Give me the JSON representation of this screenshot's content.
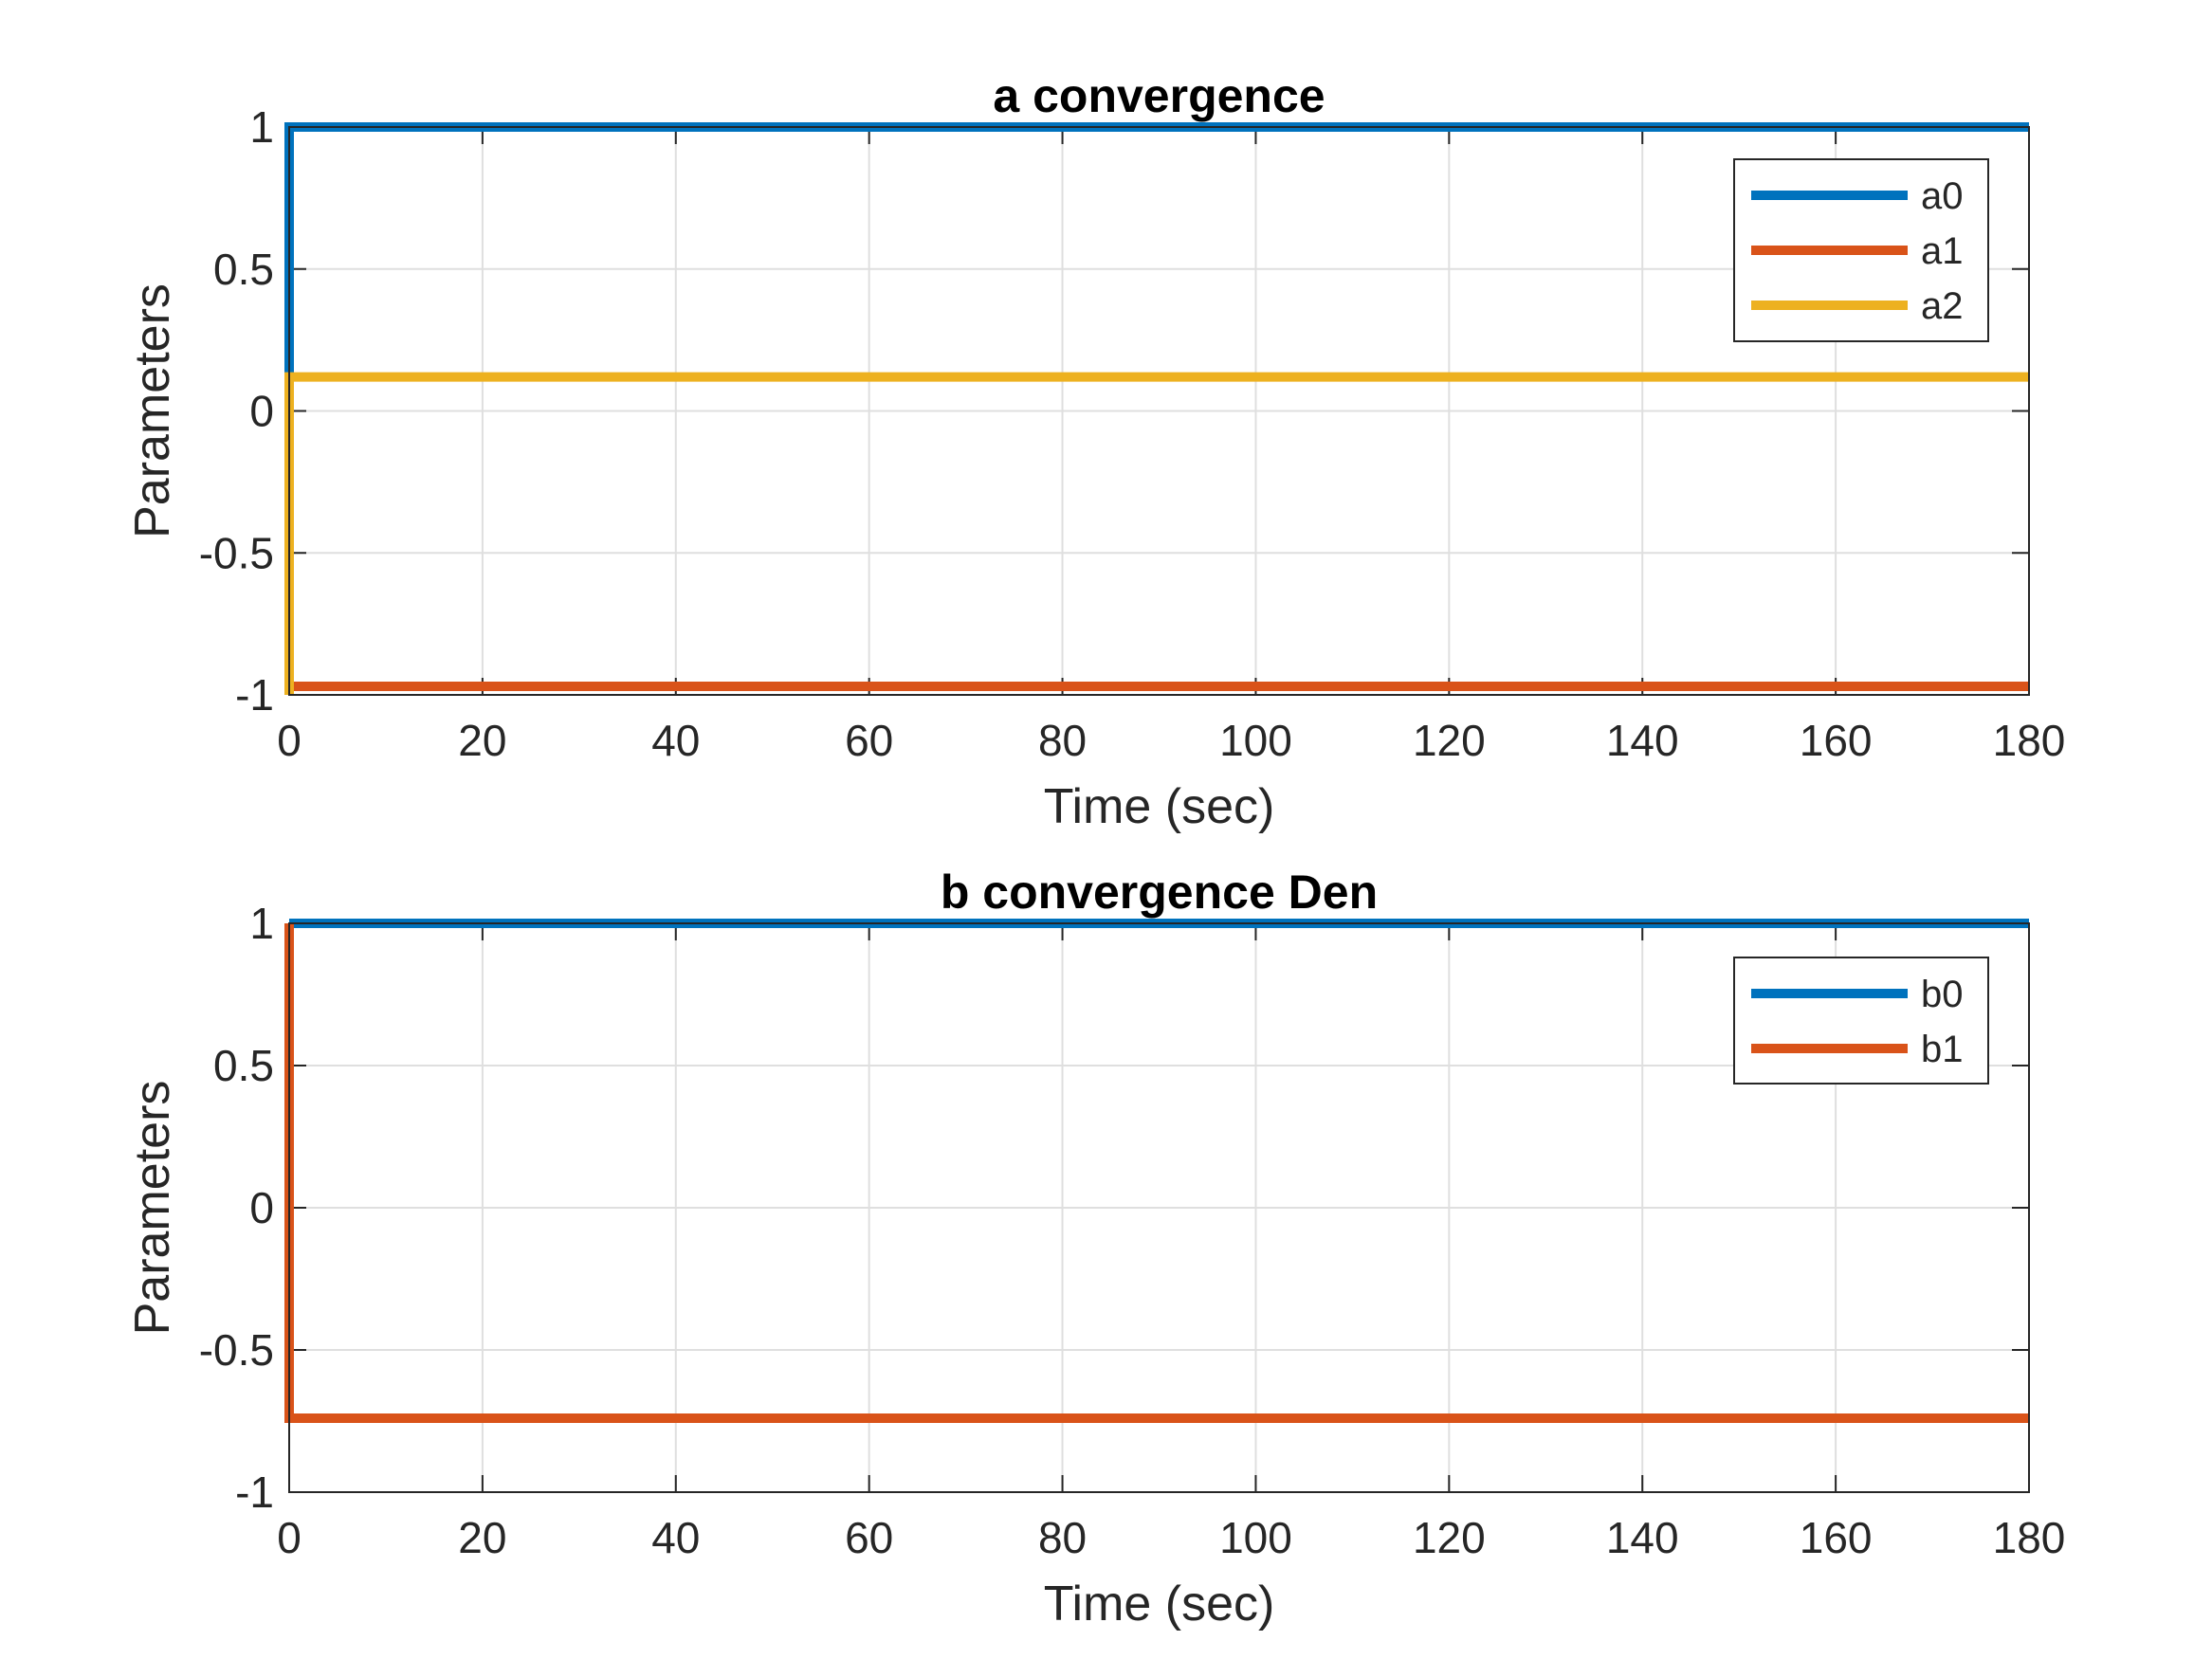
{
  "chart_data": [
    {
      "type": "line",
      "title": "a convergence",
      "xlabel": "Time (sec)",
      "ylabel": "Parameters",
      "xlim": [
        0,
        180
      ],
      "ylim": [
        -1,
        1
      ],
      "xticks": [
        0,
        20,
        40,
        60,
        80,
        100,
        120,
        140,
        160,
        180
      ],
      "yticks": [
        -1,
        -0.5,
        0,
        0.5,
        1
      ],
      "xtick_labels": [
        "0",
        "20",
        "40",
        "60",
        "80",
        "100",
        "120",
        "140",
        "160",
        "180"
      ],
      "ytick_labels": [
        "-1",
        "-0.5",
        "0",
        "0.5",
        "1"
      ],
      "grid": true,
      "legend_location": "top-right",
      "series": [
        {
          "name": "a0",
          "color": "#0072BD",
          "x": [
            0,
            0,
            180
          ],
          "y": [
            0,
            1,
            1
          ]
        },
        {
          "name": "a1",
          "color": "#D95319",
          "x": [
            0,
            0,
            180
          ],
          "y": [
            0,
            -0.97,
            -0.97
          ]
        },
        {
          "name": "a2",
          "color": "#EDB120",
          "x": [
            0,
            0,
            180
          ],
          "y": [
            -1,
            0.12,
            0.12
          ]
        }
      ]
    },
    {
      "type": "line",
      "title": "b convergence Den",
      "xlabel": "Time (sec)",
      "ylabel": "Parameters",
      "xlim": [
        0,
        180
      ],
      "ylim": [
        -1,
        1
      ],
      "xticks": [
        0,
        20,
        40,
        60,
        80,
        100,
        120,
        140,
        160,
        180
      ],
      "yticks": [
        -1,
        -0.5,
        0,
        0.5,
        1
      ],
      "xtick_labels": [
        "0",
        "20",
        "40",
        "60",
        "80",
        "100",
        "120",
        "140",
        "160",
        "180"
      ],
      "ytick_labels": [
        "-1",
        "-0.5",
        "0",
        "0.5",
        "1"
      ],
      "grid": true,
      "legend_location": "top-right",
      "series": [
        {
          "name": "b0",
          "color": "#0072BD",
          "x": [
            0,
            180
          ],
          "y": [
            1,
            1
          ]
        },
        {
          "name": "b1",
          "color": "#D95319",
          "x": [
            0,
            0,
            180
          ],
          "y": [
            1,
            -0.74,
            -0.74
          ]
        }
      ]
    }
  ]
}
